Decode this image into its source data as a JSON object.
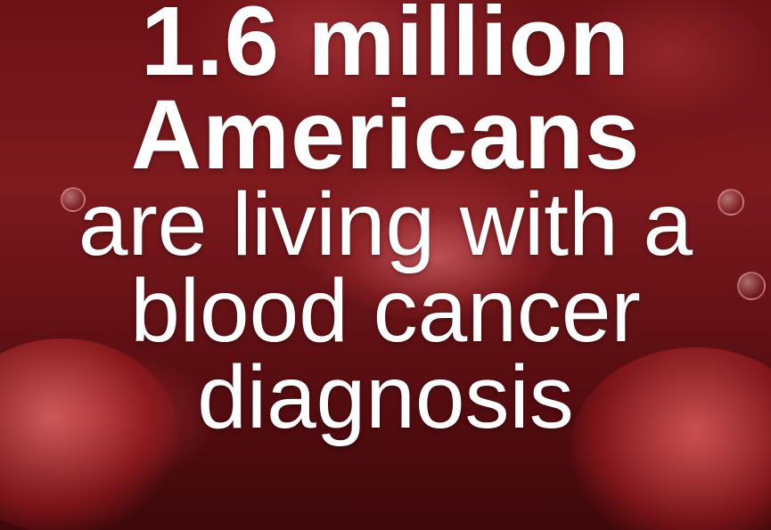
{
  "headline": {
    "line1": "1.6 million",
    "line2": "Americans",
    "line3": "are living with a",
    "line4": "blood cancer",
    "line5": "diagnosis"
  },
  "colors": {
    "text": "#ffffff",
    "background": "#6e1216"
  }
}
